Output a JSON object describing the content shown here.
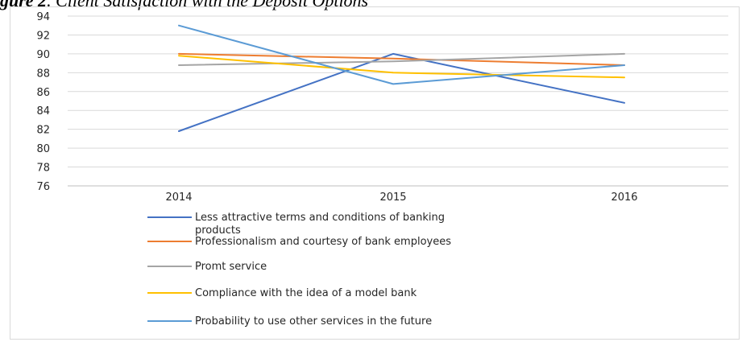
{
  "caption": {
    "prefix": "gure 2",
    "suffix": ". Client Satisfaction with the Deposit Options"
  },
  "chart_data": {
    "type": "line",
    "title": "",
    "xlabel": "",
    "ylabel": "",
    "categories": [
      "2014",
      "2015",
      "2016"
    ],
    "ylim": [
      76,
      94
    ],
    "yticks": [
      76,
      78,
      80,
      82,
      84,
      86,
      88,
      90,
      92,
      94
    ],
    "grid": true,
    "legend_position": "bottom",
    "series": [
      {
        "name": "Less attractive terms and conditions of banking products",
        "lines": [
          "Less attractive terms and conditions of banking",
          "products"
        ],
        "color": "#4472c4",
        "values": [
          81.8,
          90.0,
          84.8
        ]
      },
      {
        "name": "Professionalism and courtesy of bank employees",
        "lines": [
          "Professionalism and courtesy of bank employees"
        ],
        "color": "#ed7d31",
        "values": [
          90.0,
          89.5,
          88.8
        ]
      },
      {
        "name": "Promt service",
        "lines": [
          "Promt service"
        ],
        "color": "#a5a5a5",
        "values": [
          88.8,
          89.2,
          90.0
        ]
      },
      {
        "name": "Compliance with the idea of a model bank",
        "lines": [
          "Compliance with the idea of a model bank"
        ],
        "color": "#ffc000",
        "values": [
          89.8,
          88.0,
          87.5
        ]
      },
      {
        "name": "Probability to use other services in the future",
        "lines": [
          "Probability to use other services in the future"
        ],
        "color": "#5b9bd5",
        "values": [
          93.0,
          86.8,
          88.8
        ]
      }
    ]
  }
}
